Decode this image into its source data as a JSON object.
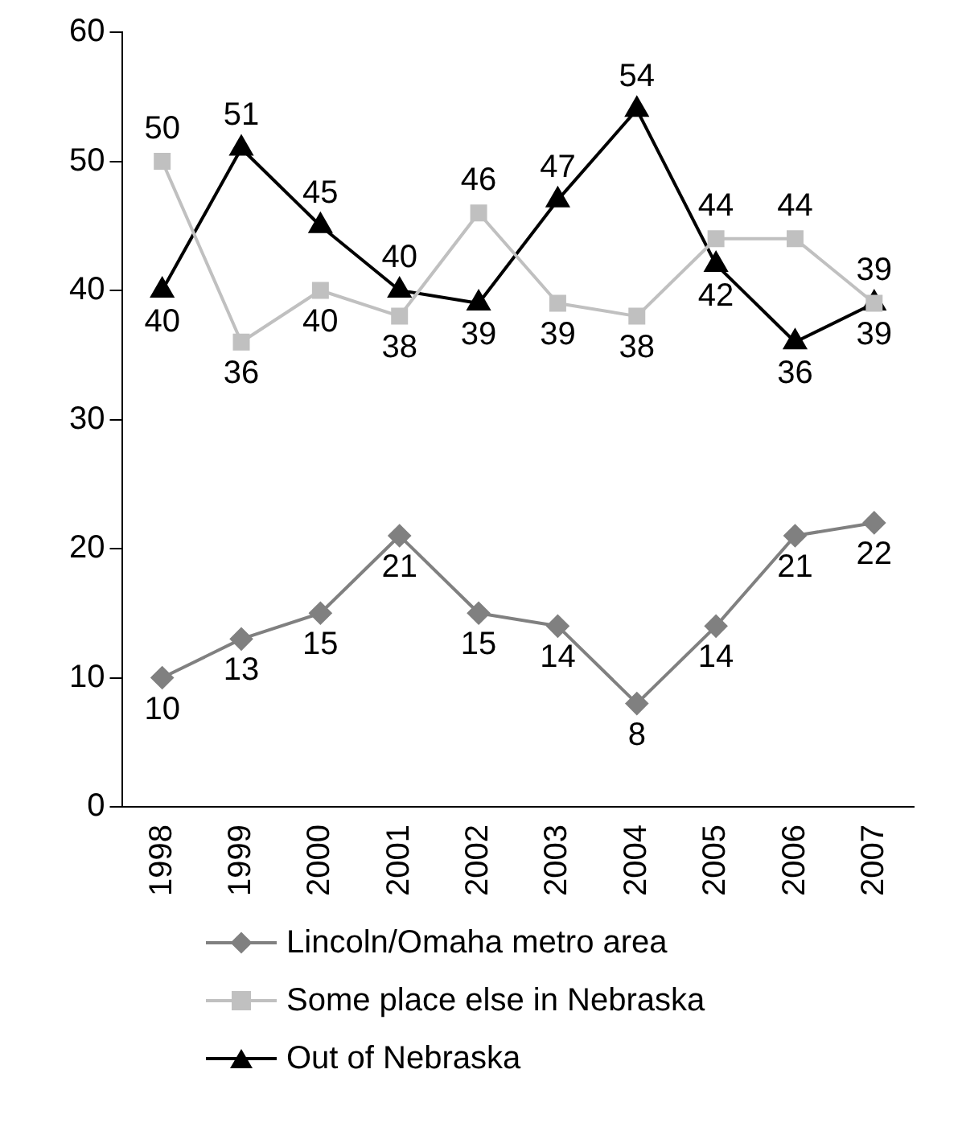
{
  "chart_data": {
    "type": "line",
    "categories": [
      "1998",
      "1999",
      "2000",
      "2001",
      "2002",
      "2003",
      "2004",
      "2005",
      "2006",
      "2007"
    ],
    "series": [
      {
        "name": "Lincoln/Omaha metro area",
        "color": "#808080",
        "marker": "diamond",
        "values": [
          10,
          13,
          15,
          21,
          15,
          14,
          8,
          14,
          21,
          22
        ]
      },
      {
        "name": "Some place else in Nebraska",
        "color": "#c0c0c0",
        "marker": "square",
        "values": [
          50,
          36,
          40,
          38,
          46,
          39,
          38,
          44,
          44,
          39
        ]
      },
      {
        "name": "Out of Nebraska",
        "color": "#000000",
        "marker": "triangle",
        "values": [
          40,
          51,
          45,
          40,
          39,
          47,
          54,
          42,
          36,
          39
        ]
      }
    ],
    "ylim": [
      0,
      60
    ],
    "yticks": [
      0,
      10,
      20,
      30,
      40,
      50,
      60
    ],
    "grid": false,
    "legend": "bottom",
    "data_labels": true,
    "line_style": "solid"
  }
}
